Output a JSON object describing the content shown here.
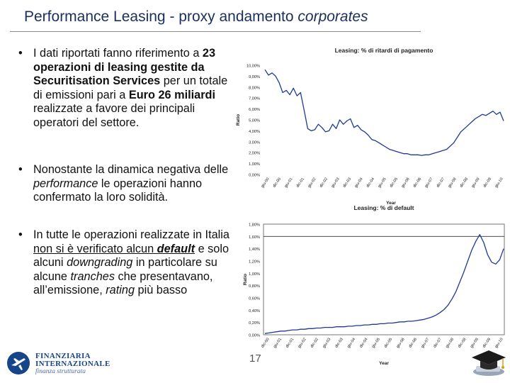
{
  "slide": {
    "title_plain": "Performance Leasing - proxy andamento ",
    "title_italic": "corporates",
    "page_number": "17"
  },
  "bullets": [
    {
      "dot": "•",
      "parts": [
        {
          "t": "I dati riportati fanno riferimento a ",
          "s": ""
        },
        {
          "t": "23 operazioni di leasing gestite da Securitisation Services",
          "s": "b"
        },
        {
          "t": " per un totale di emissioni pari a ",
          "s": ""
        },
        {
          "t": "Euro 26 miliardi",
          "s": "b"
        },
        {
          "t": " realizzate a favore dei principali operatori del settore.",
          "s": ""
        }
      ]
    },
    {
      "dot": "•",
      "parts": [
        {
          "t": "Nonostante la dinamica negativa delle ",
          "s": ""
        },
        {
          "t": "performance",
          "s": "i"
        },
        {
          "t": " le operazioni hanno confermato la loro solidità.",
          "s": ""
        }
      ]
    },
    {
      "dot": "•",
      "parts": [
        {
          "t": "In tutte le operazioni realizzate in Italia ",
          "s": ""
        },
        {
          "t": "non si è verificato alcun ",
          "s": "u"
        },
        {
          "t": "default",
          "s": "biu"
        },
        {
          "t": " e solo alcuni ",
          "s": ""
        },
        {
          "t": "downgrading",
          "s": "i"
        },
        {
          "t": " in particolare su alcune ",
          "s": ""
        },
        {
          "t": "tranches",
          "s": "i"
        },
        {
          "t": " che presentavano, all’emissione, ",
          "s": ""
        },
        {
          "t": "rating",
          "s": "i"
        },
        {
          "t": " più basso",
          "s": ""
        }
      ]
    }
  ],
  "chart_data": [
    {
      "type": "line",
      "title": "Leasing: % di ritardi di pagamento",
      "xlabel": "Year",
      "ylabel": "Ratio",
      "ylim": [
        0,
        10
      ],
      "yticks": [
        "0,00%",
        "1,00%",
        "2,00%",
        "3,00%",
        "4,00%",
        "5,00%",
        "6,00%",
        "7,00%",
        "8,00%",
        "9,00%",
        "10,00%"
      ],
      "xticks": [
        "giu-00",
        "dic-00",
        "giu-01",
        "dic-01",
        "giu-02",
        "dic-02",
        "giu-03",
        "dic-03",
        "giu-04",
        "dic-04",
        "giu-05",
        "dic-05",
        "giu-06",
        "dic-06",
        "giu-07",
        "dic-07",
        "giu-08",
        "dic-08",
        "giu-09",
        "dic-09",
        "giu-10"
      ],
      "series": [
        {
          "color": "#1f3a93",
          "values": [
            9.6,
            9.1,
            9.3,
            9.0,
            8.4,
            7.5,
            7.7,
            7.3,
            7.9,
            7.2,
            7.5,
            5.9,
            4.2,
            4.0,
            4.1,
            4.6,
            4.3,
            3.9,
            4.0,
            4.6,
            4.2,
            5.0,
            4.6,
            4.9,
            5.1,
            4.3,
            4.5,
            4.1,
            3.9,
            3.6,
            3.2,
            3.1,
            2.9,
            2.7,
            2.5,
            2.3,
            2.2,
            2.1,
            2.0,
            1.9,
            1.9,
            1.8,
            1.8,
            1.8,
            1.75,
            1.8,
            1.8,
            1.9,
            2.0,
            2.1,
            2.2,
            2.3,
            2.6,
            2.9,
            3.4,
            3.9,
            4.2,
            4.5,
            4.8,
            5.1,
            5.3,
            5.5,
            5.4,
            5.6,
            5.8,
            5.5,
            5.7,
            4.9
          ]
        }
      ]
    },
    {
      "type": "line",
      "title": "Leasing: % di default",
      "xlabel": "Year",
      "ylabel": "Ratio",
      "ylim": [
        0,
        1.8
      ],
      "yticks": [
        "0,00%",
        "0,20%",
        "0,40%",
        "0,60%",
        "0,80%",
        "1,00%",
        "1,20%",
        "1,40%",
        "1,60%",
        "1,80%"
      ],
      "xticks": [
        "dic-00",
        "giu-01",
        "dic-01",
        "giu-02",
        "dic-02",
        "giu-03",
        "dic-03",
        "giu-04",
        "dic-04",
        "giu-05",
        "dic-05",
        "giu-06",
        "dic-06",
        "giu-07",
        "dic-07",
        "giu-08",
        "dic-08",
        "giu-09",
        "dic-09",
        "giu-10"
      ],
      "series": [
        {
          "color": "#1f3a93",
          "values": [
            0.02,
            0.03,
            0.04,
            0.05,
            0.06,
            0.06,
            0.07,
            0.08,
            0.08,
            0.09,
            0.09,
            0.1,
            0.1,
            0.11,
            0.11,
            0.12,
            0.12,
            0.12,
            0.13,
            0.13,
            0.13,
            0.14,
            0.14,
            0.15,
            0.15,
            0.16,
            0.16,
            0.17,
            0.17,
            0.18,
            0.18,
            0.19,
            0.19,
            0.2,
            0.21,
            0.21,
            0.22,
            0.22,
            0.23,
            0.24,
            0.25,
            0.27,
            0.29,
            0.32,
            0.36,
            0.41,
            0.48,
            0.58,
            0.7,
            0.86,
            1.02,
            1.2,
            1.38,
            1.52,
            1.63,
            1.5,
            1.3,
            1.18,
            1.15,
            1.22,
            1.4
          ]
        }
      ]
    }
  ],
  "logo": {
    "line1": "FINANZIARIA",
    "line2": "INTERNAZIONALE",
    "line3": "finanza strutturata"
  },
  "icons": {
    "logo": "airplane-globe-logo-icon",
    "graduation": "graduation-cap-icon"
  }
}
